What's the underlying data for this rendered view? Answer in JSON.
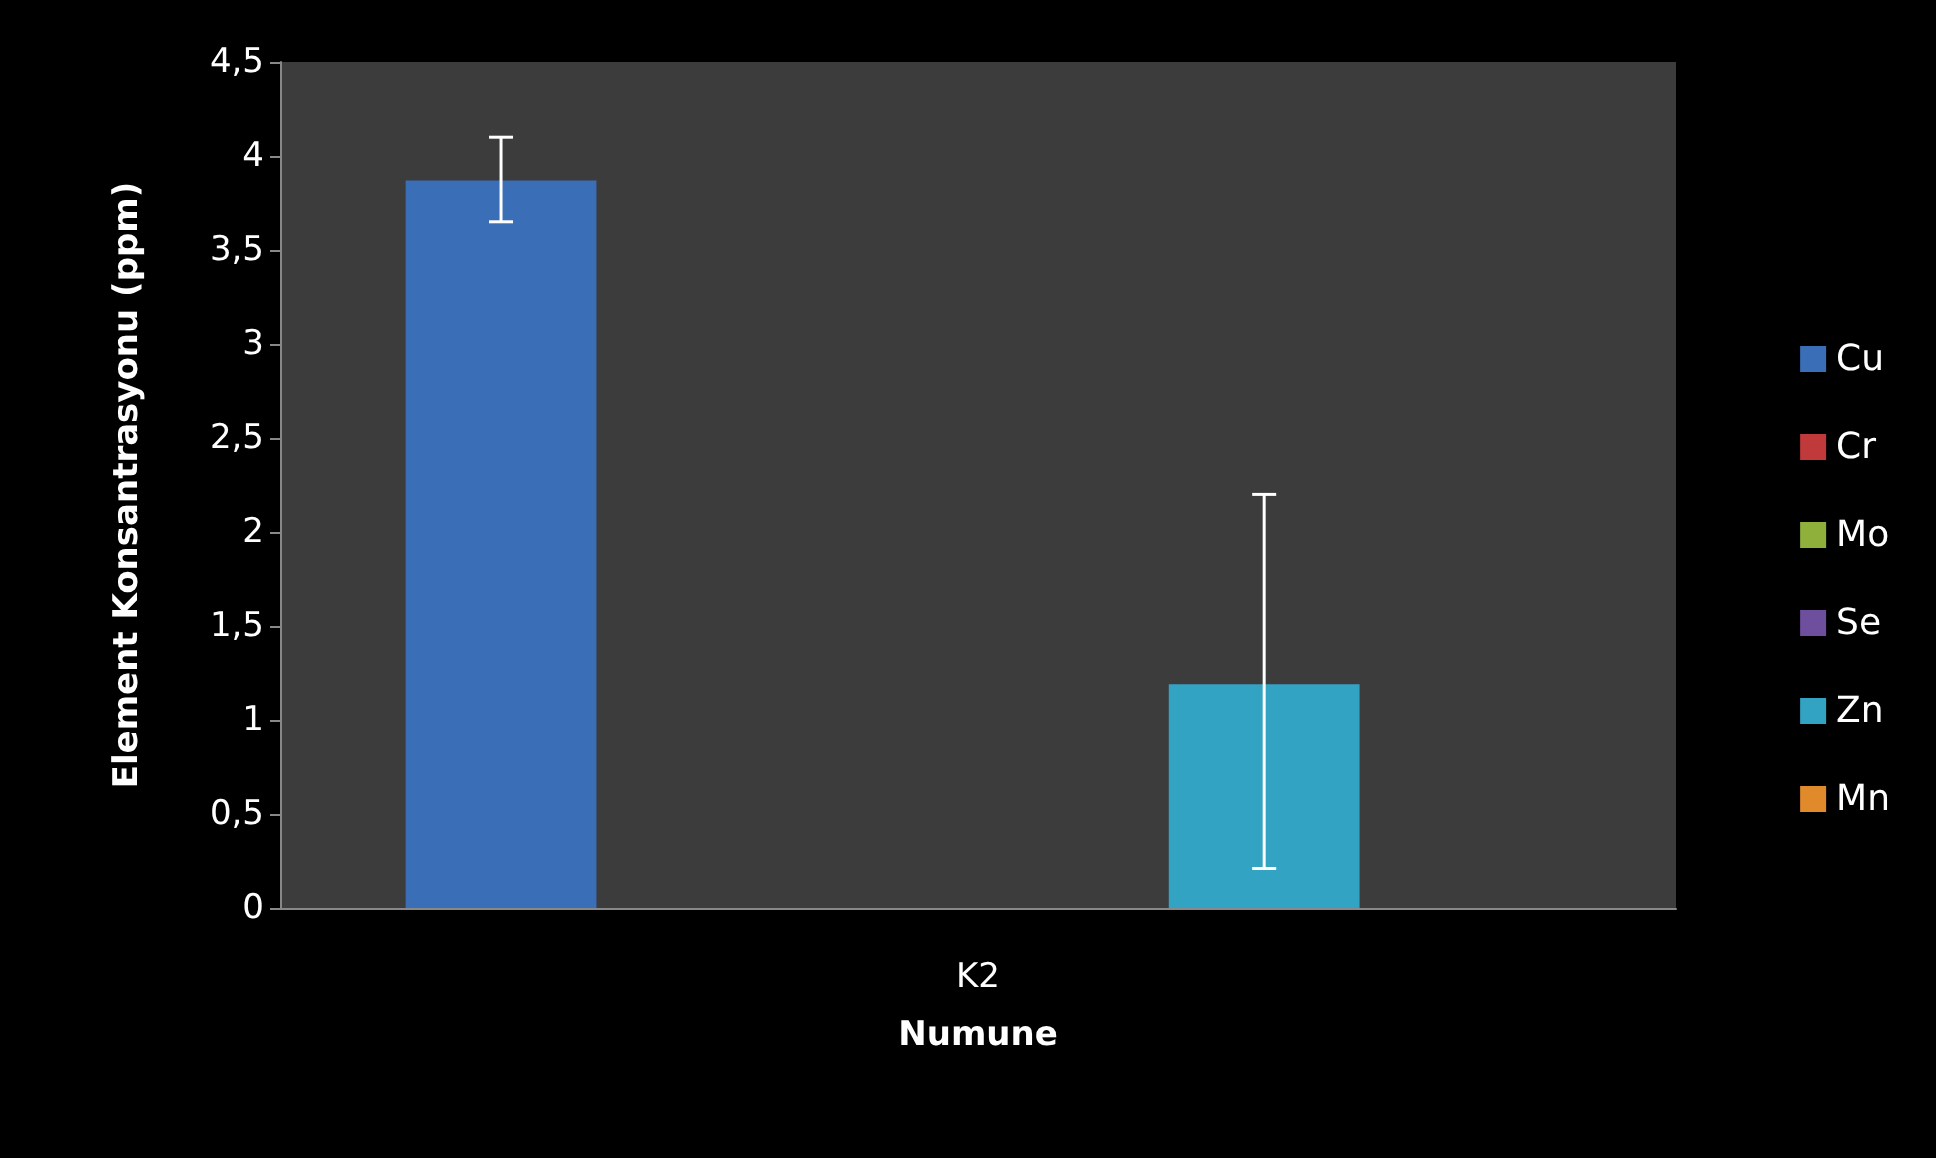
{
  "chart_data": {
    "type": "bar",
    "xlabel": "Numune",
    "ylabel": "Element Konsantrasyonu (ppm)",
    "categories": [
      "K2"
    ],
    "series": [
      {
        "name": "Cu",
        "color": "#3a6fb8",
        "values": [
          3.87
        ],
        "errors": [
          [
            3.65,
            4.1
          ]
        ]
      },
      {
        "name": "Cr",
        "color": "#c0393b",
        "values": [
          0
        ],
        "errors": [
          null
        ]
      },
      {
        "name": "Mo",
        "color": "#8fb13c",
        "values": [
          0
        ],
        "errors": [
          null
        ]
      },
      {
        "name": "Se",
        "color": "#6e4f9e",
        "values": [
          0
        ],
        "errors": [
          null
        ]
      },
      {
        "name": "Zn",
        "color": "#33a3c4",
        "values": [
          1.19
        ],
        "errors": [
          [
            0.21,
            2.2
          ]
        ]
      },
      {
        "name": "Mn",
        "color": "#e08a2c",
        "values": [
          0
        ],
        "errors": [
          null
        ]
      }
    ],
    "ylim": [
      0,
      4.5
    ],
    "yticks": [
      {
        "value": 0,
        "label": "0"
      },
      {
        "value": 0.5,
        "label": "0,5"
      },
      {
        "value": 1,
        "label": "1"
      },
      {
        "value": 1.5,
        "label": "1,5"
      },
      {
        "value": 2,
        "label": "2"
      },
      {
        "value": 2.5,
        "label": "2,5"
      },
      {
        "value": 3,
        "label": "3"
      },
      {
        "value": 3.5,
        "label": "3,5"
      },
      {
        "value": 4,
        "label": "4"
      },
      {
        "value": 4.5,
        "label": "4,5"
      }
    ],
    "legend": "right"
  }
}
